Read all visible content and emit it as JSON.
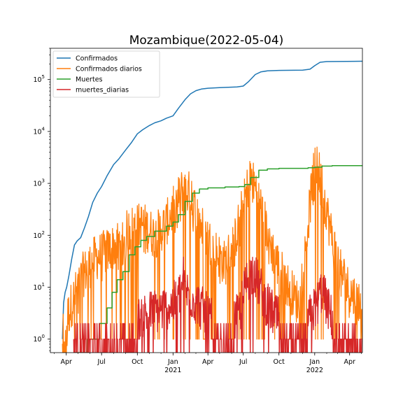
{
  "chart_data": {
    "type": "line",
    "title": "Mozambique(2022-05-04)",
    "xlabel": "",
    "ylabel": "",
    "y_scale": "log",
    "ylim": [
      0.55,
      400000
    ],
    "xlim": [
      "2020-02-20",
      "2022-05-04"
    ],
    "x_ticks": [
      {
        "date": "2020-04-01",
        "label": "Apr",
        "sub": ""
      },
      {
        "date": "2020-07-01",
        "label": "Jul",
        "sub": ""
      },
      {
        "date": "2020-10-01",
        "label": "Oct",
        "sub": ""
      },
      {
        "date": "2021-01-01",
        "label": "Jan",
        "sub": "2021"
      },
      {
        "date": "2021-04-01",
        "label": "Apr",
        "sub": ""
      },
      {
        "date": "2021-07-01",
        "label": "Jul",
        "sub": ""
      },
      {
        "date": "2021-10-01",
        "label": "Oct",
        "sub": ""
      },
      {
        "date": "2022-01-01",
        "label": "Jan",
        "sub": "2022"
      },
      {
        "date": "2022-04-01",
        "label": "Apr",
        "sub": ""
      }
    ],
    "y_ticks": [
      {
        "value": 1,
        "base": "10",
        "exp": "0"
      },
      {
        "value": 10,
        "base": "10",
        "exp": "1"
      },
      {
        "value": 100,
        "base": "10",
        "exp": "2"
      },
      {
        "value": 1000,
        "base": "10",
        "exp": "3"
      },
      {
        "value": 10000,
        "base": "10",
        "exp": "4"
      },
      {
        "value": 100000,
        "base": "10",
        "exp": "5"
      }
    ],
    "grid": false,
    "legend_position": "top-left",
    "series": [
      {
        "name": "Confirmados",
        "color": "#1f77b4",
        "style": "smooth",
        "points": [
          [
            "2020-03-22",
            1
          ],
          [
            "2020-03-25",
            5
          ],
          [
            "2020-03-29",
            8
          ],
          [
            "2020-04-02",
            10
          ],
          [
            "2020-04-08",
            17
          ],
          [
            "2020-04-15",
            35
          ],
          [
            "2020-04-22",
            65
          ],
          [
            "2020-04-29",
            78
          ],
          [
            "2020-05-08",
            90
          ],
          [
            "2020-05-18",
            140
          ],
          [
            "2020-05-28",
            230
          ],
          [
            "2020-06-08",
            430
          ],
          [
            "2020-06-20",
            650
          ],
          [
            "2020-07-01",
            870
          ],
          [
            "2020-07-15",
            1400
          ],
          [
            "2020-08-01",
            2300
          ],
          [
            "2020-08-15",
            3000
          ],
          [
            "2020-09-01",
            4400
          ],
          [
            "2020-09-15",
            6000
          ],
          [
            "2020-10-01",
            9000
          ],
          [
            "2020-10-15",
            10800
          ],
          [
            "2020-11-01",
            13000
          ],
          [
            "2020-11-15",
            14700
          ],
          [
            "2020-12-01",
            16000
          ],
          [
            "2020-12-15",
            18000
          ],
          [
            "2021-01-01",
            20000
          ],
          [
            "2021-01-15",
            28000
          ],
          [
            "2021-02-01",
            41000
          ],
          [
            "2021-02-15",
            53000
          ],
          [
            "2021-03-01",
            61000
          ],
          [
            "2021-03-15",
            65500
          ],
          [
            "2021-04-01",
            68000
          ],
          [
            "2021-05-01",
            70000
          ],
          [
            "2021-06-15",
            72000
          ],
          [
            "2021-07-01",
            75000
          ],
          [
            "2021-07-15",
            92000
          ],
          [
            "2021-08-01",
            125000
          ],
          [
            "2021-08-15",
            140000
          ],
          [
            "2021-09-01",
            147000
          ],
          [
            "2021-10-01",
            150000
          ],
          [
            "2021-12-01",
            152000
          ],
          [
            "2021-12-20",
            158000
          ],
          [
            "2022-01-01",
            185000
          ],
          [
            "2022-01-15",
            215000
          ],
          [
            "2022-02-01",
            222000
          ],
          [
            "2022-05-04",
            225000
          ]
        ]
      },
      {
        "name": "Confirmados diarios",
        "color": "#ff7f0e",
        "style": "daily",
        "envelope": [
          [
            "2020-03-22",
            1.5
          ],
          [
            "2020-04-15",
            6
          ],
          [
            "2020-05-15",
            22
          ],
          [
            "2020-06-15",
            45
          ],
          [
            "2020-07-15",
            60
          ],
          [
            "2020-08-15",
            90
          ],
          [
            "2020-09-15",
            170
          ],
          [
            "2020-10-15",
            200
          ],
          [
            "2020-11-15",
            120
          ],
          [
            "2020-12-15",
            210
          ],
          [
            "2021-01-10",
            520
          ],
          [
            "2021-01-25",
            900
          ],
          [
            "2021-02-10",
            820
          ],
          [
            "2021-03-01",
            350
          ],
          [
            "2021-03-20",
            150
          ],
          [
            "2021-04-15",
            70
          ],
          [
            "2021-05-15",
            35
          ],
          [
            "2021-06-10",
            110
          ],
          [
            "2021-07-05",
            600
          ],
          [
            "2021-07-18",
            1600
          ],
          [
            "2021-08-05",
            900
          ],
          [
            "2021-08-25",
            220
          ],
          [
            "2021-09-20",
            45
          ],
          [
            "2021-10-20",
            15
          ],
          [
            "2021-11-20",
            6
          ],
          [
            "2021-12-10",
            80
          ],
          [
            "2021-12-25",
            1200
          ],
          [
            "2022-01-05",
            3000
          ],
          [
            "2022-01-20",
            1200
          ],
          [
            "2022-02-10",
            160
          ],
          [
            "2022-03-01",
            40
          ],
          [
            "2022-04-01",
            10
          ],
          [
            "2022-05-04",
            6
          ]
        ],
        "peaks": [
          [
            "2021-01-30",
            1300
          ],
          [
            "2021-07-20",
            2400
          ],
          [
            "2022-01-07",
            5000
          ],
          [
            "2021-02-18",
            1100
          ]
        ],
        "dips": [
          [
            "2021-01-03",
            1
          ],
          [
            "2021-03-25",
            1
          ],
          [
            "2021-06-20",
            1
          ],
          [
            "2021-09-20",
            1
          ],
          [
            "2021-12-05",
            1
          ],
          [
            "2022-02-20",
            1
          ],
          [
            "2022-04-20",
            1
          ]
        ]
      },
      {
        "name": "Muertes",
        "color": "#2ca02c",
        "style": "step",
        "points": [
          [
            "2020-04-24",
            0.55
          ],
          [
            "2020-05-25",
            1
          ],
          [
            "2020-06-25",
            2
          ],
          [
            "2020-07-15",
            4
          ],
          [
            "2020-07-28",
            8
          ],
          [
            "2020-08-10",
            14
          ],
          [
            "2020-08-25",
            20
          ],
          [
            "2020-09-10",
            42
          ],
          [
            "2020-09-25",
            60
          ],
          [
            "2020-10-10",
            80
          ],
          [
            "2020-10-25",
            95
          ],
          [
            "2020-11-15",
            120
          ],
          [
            "2020-12-15",
            150
          ],
          [
            "2021-01-01",
            180
          ],
          [
            "2021-01-15",
            250
          ],
          [
            "2021-02-01",
            450
          ],
          [
            "2021-02-20",
            650
          ],
          [
            "2021-03-10",
            780
          ],
          [
            "2021-04-01",
            820
          ],
          [
            "2021-05-15",
            850
          ],
          [
            "2021-06-20",
            870
          ],
          [
            "2021-07-05",
            950
          ],
          [
            "2021-07-20",
            1300
          ],
          [
            "2021-08-10",
            1800
          ],
          [
            "2021-09-01",
            1900
          ],
          [
            "2021-10-01",
            1950
          ],
          [
            "2021-12-15",
            2000
          ],
          [
            "2022-01-01",
            2050
          ],
          [
            "2022-01-20",
            2150
          ],
          [
            "2022-02-15",
            2190
          ],
          [
            "2022-05-04",
            2200
          ]
        ]
      },
      {
        "name": "muertes_diarias",
        "color": "#d62728",
        "style": "daily-sparse",
        "envelope": [
          [
            "2020-04-20",
            1
          ],
          [
            "2020-09-15",
            2
          ],
          [
            "2020-10-15",
            4
          ],
          [
            "2020-12-01",
            5
          ],
          [
            "2021-01-10",
            7
          ],
          [
            "2021-01-25",
            15
          ],
          [
            "2021-02-10",
            10
          ],
          [
            "2021-03-10",
            6
          ],
          [
            "2021-04-10",
            3
          ],
          [
            "2021-05-20",
            2
          ],
          [
            "2021-06-20",
            4
          ],
          [
            "2021-07-10",
            18
          ],
          [
            "2021-07-25",
            28
          ],
          [
            "2021-08-10",
            15
          ],
          [
            "2021-09-01",
            6
          ],
          [
            "2021-10-01",
            3
          ],
          [
            "2021-12-01",
            2
          ],
          [
            "2022-01-05",
            6
          ],
          [
            "2022-01-20",
            12
          ],
          [
            "2022-02-10",
            4
          ],
          [
            "2022-03-01",
            2
          ],
          [
            "2022-05-04",
            1
          ]
        ],
        "peaks": [
          [
            "2021-01-28",
            38
          ],
          [
            "2021-07-18",
            33
          ],
          [
            "2021-07-30",
            32
          ],
          [
            "2022-01-15",
            15
          ]
        ]
      }
    ]
  }
}
